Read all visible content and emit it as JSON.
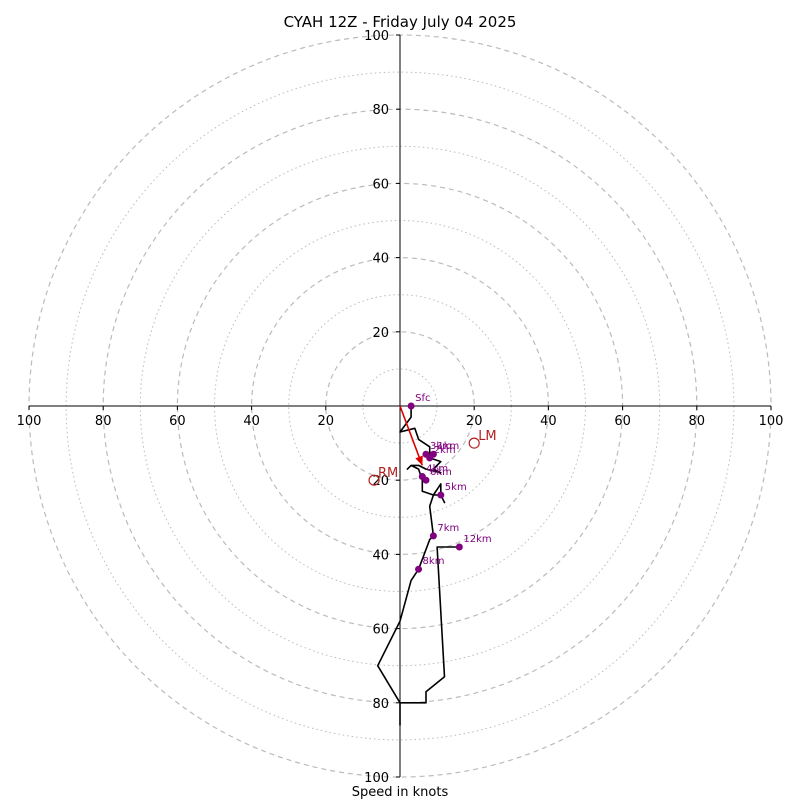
{
  "chart_data": {
    "type": "hodograph",
    "title": "CYAH 12Z - Friday July 04 2025",
    "xlabel": "Speed in knots",
    "units": "knots",
    "max_speed": 100,
    "ring_step": 10,
    "labeled_ticks": [
      20,
      40,
      60,
      80,
      100
    ],
    "tick_labels": [
      "20",
      "40",
      "60",
      "80",
      "100"
    ],
    "colors": {
      "trace": "#000000",
      "mean_wind_vector": "#dd0000",
      "height_markers": "#800080",
      "storm_motion": "#b22222",
      "grid": "#bbbbbb"
    },
    "trace": [
      [
        3,
        0
      ],
      [
        3,
        -3
      ],
      [
        0,
        -7
      ],
      [
        4,
        -6
      ],
      [
        5,
        -9
      ],
      [
        8,
        -11
      ],
      [
        8,
        -14
      ],
      [
        11,
        -15
      ],
      [
        9,
        -17
      ],
      [
        11,
        -18
      ],
      [
        7,
        -17
      ],
      [
        5,
        -16
      ],
      [
        3,
        -16
      ],
      [
        2,
        -17
      ],
      [
        3,
        -16
      ],
      [
        5,
        -17
      ],
      [
        6,
        -20
      ],
      [
        6,
        -23
      ],
      [
        9,
        -24
      ],
      [
        11,
        -21
      ],
      [
        11,
        -24
      ],
      [
        12,
        -26
      ],
      [
        11,
        -24
      ],
      [
        9,
        -24
      ],
      [
        8,
        -27
      ],
      [
        9,
        -35
      ],
      [
        8,
        -36
      ],
      [
        5,
        -44
      ],
      [
        3,
        -47
      ],
      [
        0,
        -58
      ],
      [
        -6,
        -70
      ],
      [
        0,
        -80
      ],
      [
        0,
        -86
      ],
      [
        0,
        -80
      ],
      [
        7,
        -80
      ],
      [
        7,
        -77
      ],
      [
        12,
        -73
      ],
      [
        10,
        -38
      ],
      [
        16,
        -38
      ]
    ],
    "mean_wind": {
      "from": [
        0,
        0
      ],
      "to": [
        6,
        -16
      ]
    },
    "heights": [
      {
        "label": "Sfc",
        "u": 3,
        "v": 0
      },
      {
        "label": "1km",
        "u": 9,
        "v": -13
      },
      {
        "label": "2km",
        "u": 8,
        "v": -14
      },
      {
        "label": "3km",
        "u": 7,
        "v": -13
      },
      {
        "label": "4km",
        "u": 6,
        "v": -19
      },
      {
        "label": "5km",
        "u": 11,
        "v": -24
      },
      {
        "label": "6km",
        "u": 7,
        "v": -20
      },
      {
        "label": "7km",
        "u": 9,
        "v": -35
      },
      {
        "label": "8km",
        "u": 5,
        "v": -44
      },
      {
        "label": "12km",
        "u": 16,
        "v": -38
      }
    ],
    "storm_motion": [
      {
        "label": "RM",
        "u": -7,
        "v": -20
      },
      {
        "label": "LM",
        "u": 20,
        "v": -10
      }
    ]
  }
}
